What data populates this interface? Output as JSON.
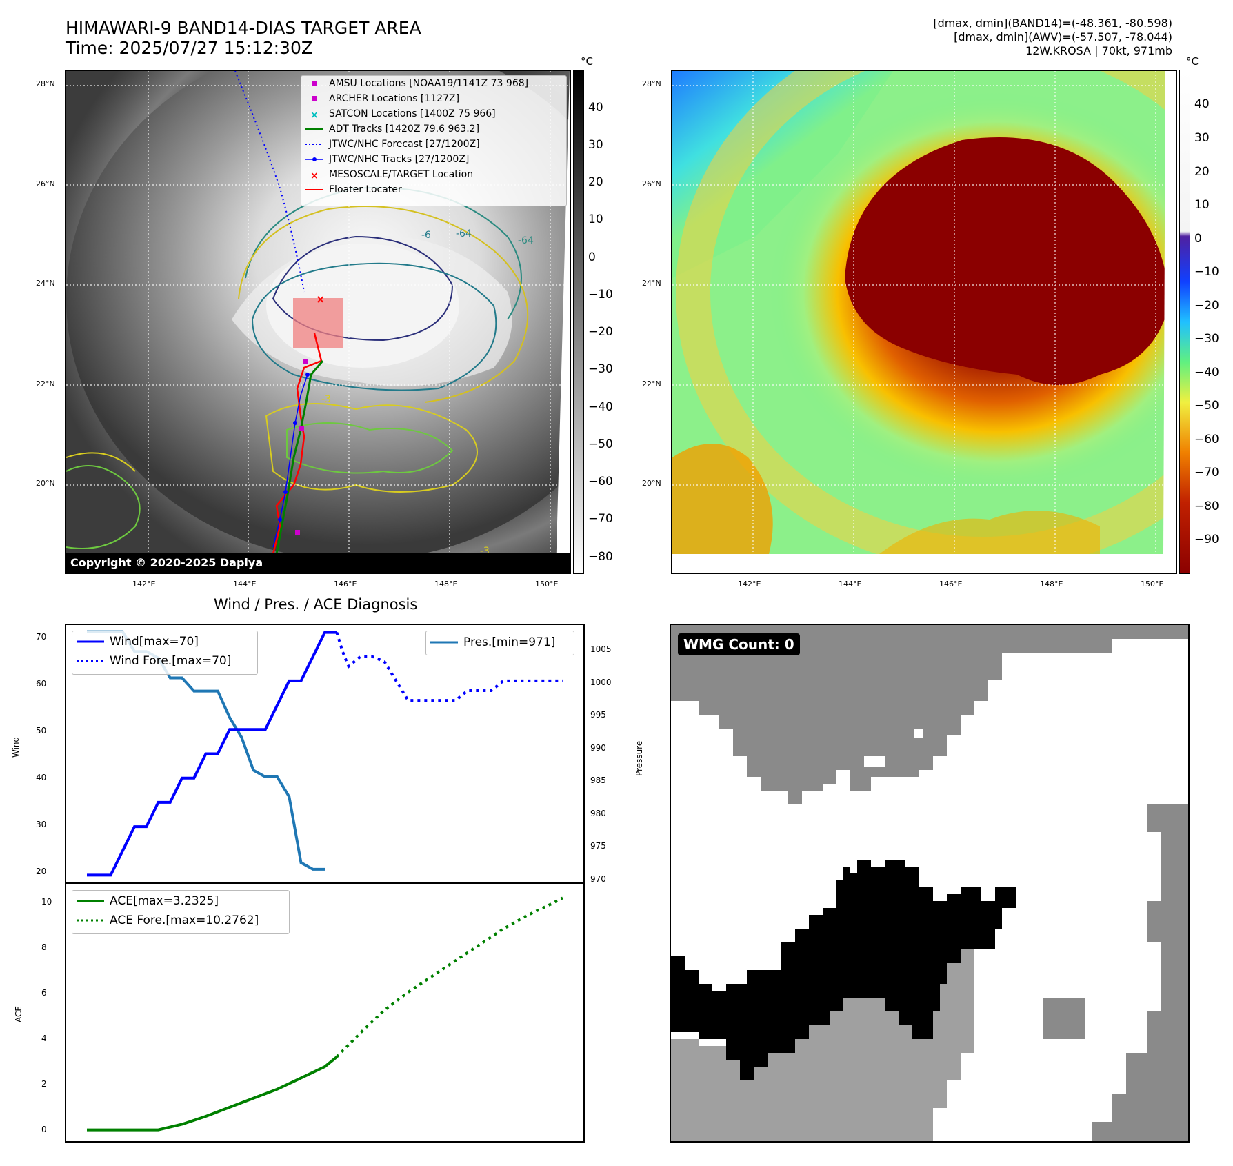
{
  "header": {
    "title_line1": "HIMAWARI-9 BAND14-DIAS TARGET AREA",
    "title_line2": "Time: 2025/07/27 15:12:30Z",
    "info_line1": "[dmax, dmin](BAND14)=(-48.361, -80.598)",
    "info_line2": "[dmax, dmin](AWV)=(-57.507, -78.044)",
    "info_line3": "12W.KROSA | 70kt, 971mb"
  },
  "map": {
    "lat_ticks": [
      "28°N",
      "26°N",
      "24°N",
      "22°N",
      "20°N"
    ],
    "lon_ticks": [
      "142°E",
      "144°E",
      "146°E",
      "148°E",
      "150°E"
    ],
    "copyright": "Copyright © 2020-2025 Dapiya",
    "contour_labels": [
      "-64",
      "-64",
      "-6",
      "-3",
      "-3"
    ],
    "legend": [
      {
        "label": "AMSU Locations [NOAA19/1141Z 73 968]",
        "marker": "square",
        "color": "#cc00cc"
      },
      {
        "label": "ARCHER Locations [1127Z]",
        "marker": "square",
        "color": "#cc00cc"
      },
      {
        "label": "SATCON Locations [1400Z 75 966]",
        "marker": "x",
        "color": "#00bfbf"
      },
      {
        "label": "ADT Tracks [1420Z 79.6 963.2]",
        "marker": "line",
        "color": "#008000"
      },
      {
        "label": "JTWC/NHC Forecast [27/1200Z]",
        "marker": "dotted",
        "color": "#0000ff"
      },
      {
        "label": "JTWC/NHC Tracks [27/1200Z]",
        "marker": "line-dot",
        "color": "#0000ff"
      },
      {
        "label": "MESOSCALE/TARGET Location",
        "marker": "x",
        "color": "#ff0000"
      },
      {
        "label": "Floater Locater",
        "marker": "line",
        "color": "#ff0000"
      }
    ]
  },
  "colorbar_left": {
    "unit": "°C",
    "ticks": [
      "40",
      "30",
      "20",
      "10",
      "0",
      "−10",
      "−20",
      "−30",
      "−40",
      "−50",
      "−60",
      "−70",
      "−80"
    ]
  },
  "colorbar_right": {
    "unit": "°C",
    "ticks": [
      "40",
      "30",
      "20",
      "10",
      "0",
      "−10",
      "−20",
      "−30",
      "−40",
      "−50",
      "−60",
      "−70",
      "−80",
      "−90"
    ]
  },
  "diag": {
    "title": "Wind / Pres. / ACE Diagnosis",
    "wind_ylabel": "Wind",
    "pres_ylabel": "Pressure",
    "ace_ylabel": "ACE",
    "wind_ticks": [
      "70",
      "60",
      "50",
      "40",
      "30",
      "20"
    ],
    "pres_ticks": [
      "1005",
      "1000",
      "995",
      "990",
      "985",
      "980",
      "975",
      "970"
    ],
    "ace_ticks": [
      "10",
      "8",
      "6",
      "4",
      "2",
      "0"
    ],
    "legend_wind": [
      "Wind[max=70]",
      "Wind Fore.[max=70]"
    ],
    "legend_pres": [
      "Pres.[min=971]"
    ],
    "legend_ace": [
      "ACE[max=3.2325]",
      "ACE Fore.[max=10.2762]"
    ]
  },
  "wmg": {
    "label": "WMG Count: 0"
  },
  "chart_data": [
    {
      "type": "line",
      "title": "Wind / Pres. / ACE Diagnosis",
      "ylabel": "Wind",
      "ylim": [
        18.5,
        71.5
      ],
      "series": [
        {
          "name": "Wind[max=70]",
          "color": "#0000ff",
          "style": "solid",
          "x": [
            0,
            1,
            2,
            3,
            4,
            5,
            6,
            7,
            8,
            9,
            10,
            11,
            12,
            13,
            14
          ],
          "values": [
            20,
            20,
            20,
            25,
            30,
            30,
            35,
            35,
            40,
            40,
            45,
            45,
            50,
            50,
            50
          ]
        },
        {
          "name": "Wind[max=70] (cont.)",
          "color": "#0000ff",
          "style": "solid",
          "x": [
            14,
            15,
            16,
            17,
            18,
            19,
            20,
            21
          ],
          "values": [
            50,
            50,
            55,
            60,
            60,
            65,
            70,
            70
          ]
        },
        {
          "name": "Wind Fore.[max=70]",
          "color": "#0000ff",
          "style": "dotted",
          "x": [
            21,
            21.5,
            22,
            23,
            24,
            25,
            26,
            27,
            28,
            29,
            30,
            31,
            32,
            33,
            34,
            35,
            36,
            37,
            38,
            39,
            40
          ],
          "values": [
            70,
            66,
            63,
            65,
            65,
            64,
            60,
            56,
            56,
            56,
            56,
            56,
            58,
            58,
            58,
            60,
            60,
            60,
            60,
            60,
            60
          ]
        }
      ]
    },
    {
      "type": "line",
      "ylabel": "Pressure",
      "ylim": [
        969,
        1008
      ],
      "series": [
        {
          "name": "Pres.[min=971]",
          "color": "#1f77b4",
          "style": "solid",
          "x": [
            0,
            1,
            2,
            3,
            4,
            5,
            6,
            7,
            8,
            9,
            10,
            11,
            12,
            13,
            14,
            15,
            16,
            17,
            18,
            19,
            20
          ],
          "values": [
            1007,
            1007,
            1007,
            1007,
            1004,
            1004,
            1003,
            1000,
            1000,
            998,
            998,
            998,
            994,
            991,
            986,
            985,
            985,
            982,
            972,
            971,
            971
          ]
        }
      ]
    },
    {
      "type": "line",
      "ylabel": "ACE",
      "ylim": [
        -0.5,
        10.9
      ],
      "series": [
        {
          "name": "ACE[max=3.2325]",
          "color": "#008000",
          "style": "solid",
          "x": [
            0,
            2,
            4,
            6,
            8,
            10,
            12,
            14,
            16,
            18,
            20,
            21
          ],
          "values": [
            0,
            0,
            0,
            0,
            0.25,
            0.6,
            1.0,
            1.4,
            1.8,
            2.3,
            2.8,
            3.2325
          ]
        },
        {
          "name": "ACE Fore.[max=10.2762]",
          "color": "#008000",
          "style": "dotted",
          "x": [
            21,
            23,
            25,
            27,
            29,
            31,
            33,
            35,
            37,
            39,
            40
          ],
          "values": [
            3.2325,
            4.3,
            5.3,
            6.1,
            6.8,
            7.5,
            8.2,
            8.9,
            9.5,
            10.0,
            10.2762
          ]
        }
      ]
    }
  ]
}
